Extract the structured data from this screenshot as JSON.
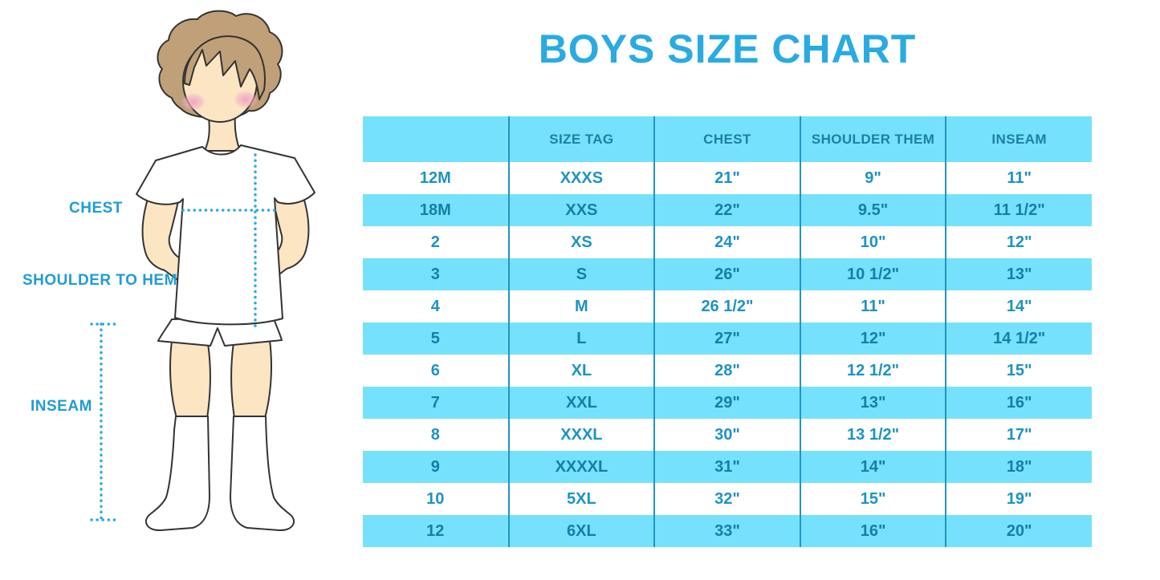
{
  "title": "BOYS SIZE CHART",
  "figure": {
    "labels": {
      "chest": "CHEST",
      "shoulder_to_hem": "SHOULDER TO HEM",
      "inseam": "INSEAM"
    }
  },
  "colors": {
    "title_blue": "#29ABE2",
    "row_blue": "#76E1FC",
    "separator_blue": "#2095C2",
    "cell_text_on_white": "#1C93C4",
    "cell_text_on_blue": "#157EA8",
    "header_text": "#1B7FA6",
    "dotted_line": "#29ABE2",
    "label_blue": "#1E9CD8",
    "hair": "#C0A078",
    "skin": "#FBE5C3"
  },
  "table": {
    "columns": [
      "",
      "SIZE TAG",
      "CHEST",
      "SHOULDER THEM",
      "INSEAM"
    ],
    "rows": [
      [
        "12M",
        "XXXS",
        "21\"",
        "9\"",
        "11\""
      ],
      [
        "18M",
        "XXS",
        "22\"",
        "9.5\"",
        "11 1/2\""
      ],
      [
        "2",
        "XS",
        "24\"",
        "10\"",
        "12\""
      ],
      [
        "3",
        "S",
        "26\"",
        "10 1/2\"",
        "13\""
      ],
      [
        "4",
        "M",
        "26 1/2\"",
        "11\"",
        "14\""
      ],
      [
        "5",
        "L",
        "27\"",
        "12\"",
        "14 1/2\""
      ],
      [
        "6",
        "XL",
        "28\"",
        "12 1/2\"",
        "15\""
      ],
      [
        "7",
        "XXL",
        "29\"",
        "13\"",
        "16\""
      ],
      [
        "8",
        "XXXL",
        "30\"",
        "13 1/2\"",
        "17\""
      ],
      [
        "9",
        "XXXXL",
        "31\"",
        "14\"",
        "18\""
      ],
      [
        "10",
        "5XL",
        "32\"",
        "15\"",
        "19\""
      ],
      [
        "12",
        "6XL",
        "33\"",
        "16\"",
        "20\""
      ]
    ]
  },
  "chart_data": {
    "type": "table",
    "title": "BOYS SIZE CHART",
    "columns": [
      "",
      "SIZE TAG",
      "CHEST",
      "SHOULDER THEM",
      "INSEAM"
    ],
    "rows": [
      [
        "12M",
        "XXXS",
        "21\"",
        "9\"",
        "11\""
      ],
      [
        "18M",
        "XXS",
        "22\"",
        "9.5\"",
        "11 1/2\""
      ],
      [
        "2",
        "XS",
        "24\"",
        "10\"",
        "12\""
      ],
      [
        "3",
        "S",
        "26\"",
        "10 1/2\"",
        "13\""
      ],
      [
        "4",
        "M",
        "26 1/2\"",
        "11\"",
        "14\""
      ],
      [
        "5",
        "L",
        "27\"",
        "12\"",
        "14 1/2\""
      ],
      [
        "6",
        "XL",
        "28\"",
        "12 1/2\"",
        "15\""
      ],
      [
        "7",
        "XXL",
        "29\"",
        "13\"",
        "16\""
      ],
      [
        "8",
        "XXXL",
        "30\"",
        "13 1/2\"",
        "17\""
      ],
      [
        "9",
        "XXXXL",
        "31\"",
        "14\"",
        "18\""
      ],
      [
        "10",
        "5XL",
        "32\"",
        "15\"",
        "19\""
      ],
      [
        "12",
        "6XL",
        "33\"",
        "16\"",
        "20\""
      ]
    ],
    "layout": {
      "alternating_row_fill": "every second data row light-cyan, starting with row 2 (18M)",
      "column_separators": "vertical teal lines between all columns, full table height",
      "annotation_labels": [
        "CHEST",
        "SHOULDER TO HEM",
        "INSEAM"
      ]
    }
  }
}
